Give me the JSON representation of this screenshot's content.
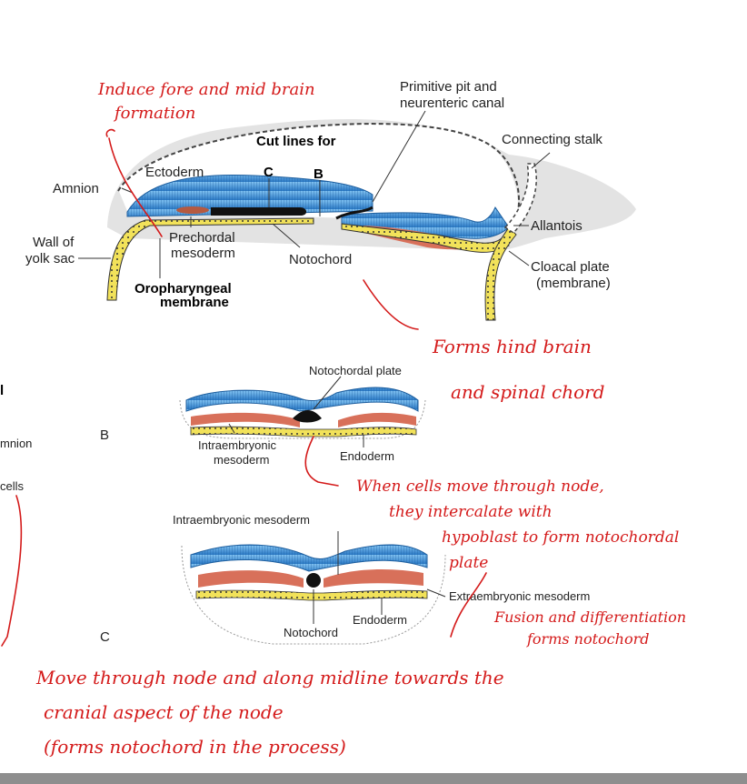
{
  "labels": {
    "primitive_pit_1": "Primitive pit and",
    "primitive_pit_2": "neurenteric canal",
    "connecting_stalk": "Connecting stalk",
    "cut_lines": "Cut lines for",
    "cut_c": "C",
    "cut_b": "B",
    "ectoderm": "Ectoderm",
    "amnion": "Amnion",
    "allantois": "Allantois",
    "wall_yolk_1": "Wall of",
    "wall_yolk_2": "yolk sac",
    "prechordal_1": "Prechordal",
    "prechordal_2": "mesoderm",
    "notochord_top": "Notochord",
    "cloacal_1": "Cloacal plate",
    "cloacal_2": "(membrane)",
    "oroph_1": "Oropharyngeal",
    "oroph_2": "membrane",
    "notochordal_plate": "Notochordal plate",
    "panel_b": "B",
    "intraemb_b_1": "Intraembryonic",
    "intraemb_b_2": "mesoderm",
    "endoderm_b": "Endoderm",
    "intraemb_c": "Intraembryonic mesoderm",
    "extraemb": "Extraembryonic mesoderm",
    "endoderm_c": "Endoderm",
    "notochord_c": "Notochord",
    "panel_c": "C",
    "left_frag_1": "l",
    "left_frag_2": "mnion",
    "left_frag_3": "cells"
  },
  "annotations": {
    "top_1": "Induce fore and mid brain",
    "top_2": "formation",
    "mid_1": "Forms hind brain",
    "mid_2": "and spinal chord",
    "right_1": "When cells move through node,",
    "right_2": "they intercalate with",
    "right_3": "hypoblast to form notochordal",
    "right_4": "plate",
    "right_5": "Fusion and differentiation",
    "right_6": "forms notochord",
    "bottom_1": "Move through node and along midline towards the",
    "bottom_2": "cranial aspect of the node",
    "bottom_3": "(forms notochord in the process)"
  },
  "colors": {
    "ectoderm": "#3a8fd6",
    "mesoderm": "#d8705a",
    "endoderm": "#f2e25a",
    "ink": "#d41a1a"
  }
}
